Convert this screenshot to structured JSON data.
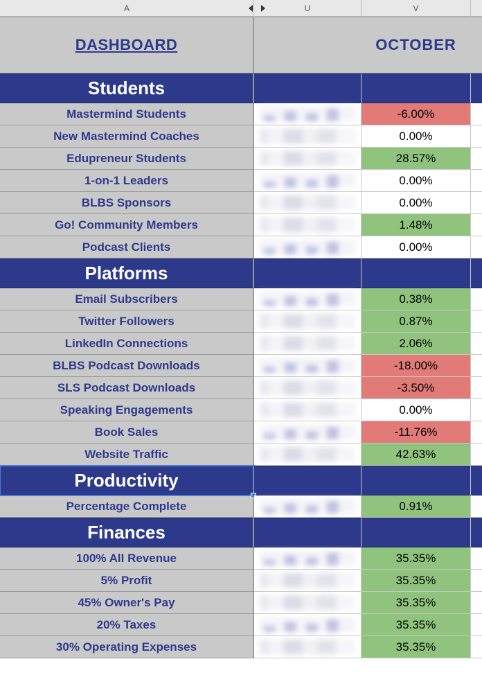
{
  "columns": {
    "A": "A",
    "U": "U",
    "V": "V"
  },
  "header": {
    "dashboard": "DASHBOARD",
    "month": "OCTOBER"
  },
  "colors": {
    "section_bg": "#2d3a8c",
    "label_text": "#2d3a8c",
    "grey_bg": "#c9c9c9",
    "green": "#90c47e",
    "red": "#e27a78",
    "neutral": "#ffffff"
  },
  "sections": [
    {
      "title": "Students",
      "rows": [
        {
          "label": "Mastermind Students",
          "value": "-6.00%",
          "tone": "red"
        },
        {
          "label": "New Mastermind Coaches",
          "value": "0.00%",
          "tone": "neutral"
        },
        {
          "label": "Edupreneur Students",
          "value": "28.57%",
          "tone": "green"
        },
        {
          "label": "1-on-1 Leaders",
          "value": "0.00%",
          "tone": "neutral"
        },
        {
          "label": "BLBS Sponsors",
          "value": "0.00%",
          "tone": "neutral"
        },
        {
          "label": "Go! Community Members",
          "value": "1.48%",
          "tone": "green"
        },
        {
          "label": "Podcast Clients",
          "value": "0.00%",
          "tone": "neutral"
        }
      ]
    },
    {
      "title": "Platforms",
      "rows": [
        {
          "label": "Email Subscribers",
          "value": "0.38%",
          "tone": "green"
        },
        {
          "label": "Twitter Followers",
          "value": "0.87%",
          "tone": "green"
        },
        {
          "label": "LinkedIn Connections",
          "value": "2.06%",
          "tone": "green"
        },
        {
          "label": "BLBS Podcast Downloads",
          "value": "-18.00%",
          "tone": "red"
        },
        {
          "label": "SLS Podcast Downloads",
          "value": "-3.50%",
          "tone": "red"
        },
        {
          "label": "Speaking Engagements",
          "value": "0.00%",
          "tone": "neutral"
        },
        {
          "label": "Book Sales",
          "value": "-11.76%",
          "tone": "red"
        },
        {
          "label": "Website Traffic",
          "value": "42.63%",
          "tone": "green"
        }
      ]
    },
    {
      "title": "Productivity",
      "selected": true,
      "rows": [
        {
          "label": "Percentage Complete",
          "value": "0.91%",
          "tone": "green"
        }
      ]
    },
    {
      "title": "Finances",
      "rows": [
        {
          "label": "100% All Revenue",
          "value": "35.35%",
          "tone": "green"
        },
        {
          "label": "5% Profit",
          "value": "35.35%",
          "tone": "green"
        },
        {
          "label": "45% Owner's Pay",
          "value": "35.35%",
          "tone": "green"
        },
        {
          "label": "20% Taxes",
          "value": "35.35%",
          "tone": "green"
        },
        {
          "label": "30% Operating Expenses",
          "value": "35.35%",
          "tone": "green"
        }
      ]
    }
  ]
}
